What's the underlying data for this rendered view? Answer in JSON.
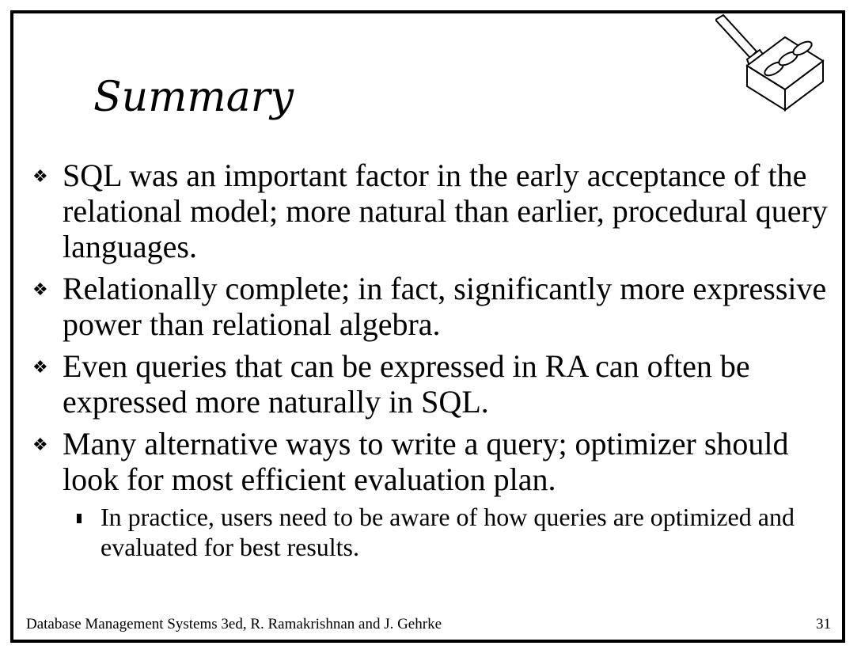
{
  "slide": {
    "title": "Summary",
    "bullets": [
      "SQL was an important factor in the early acceptance of the relational model; more natural than earlier, procedural query languages.",
      "Relationally complete; in fact, significantly more expressive power than relational algebra.",
      "Even queries that can be expressed in RA can often be expressed more naturally in SQL.",
      "Many alternative ways to write a query; optimizer should look for most efficient evaluation plan."
    ],
    "subbullets": [
      "In practice, users need to be aware of how queries are optimized and evaluated for best results."
    ],
    "footer": "Database Management Systems 3ed,  R. Ramakrishnan and J. Gehrke",
    "page_number": "31",
    "logo_icon": "trowel-brick-icon"
  }
}
